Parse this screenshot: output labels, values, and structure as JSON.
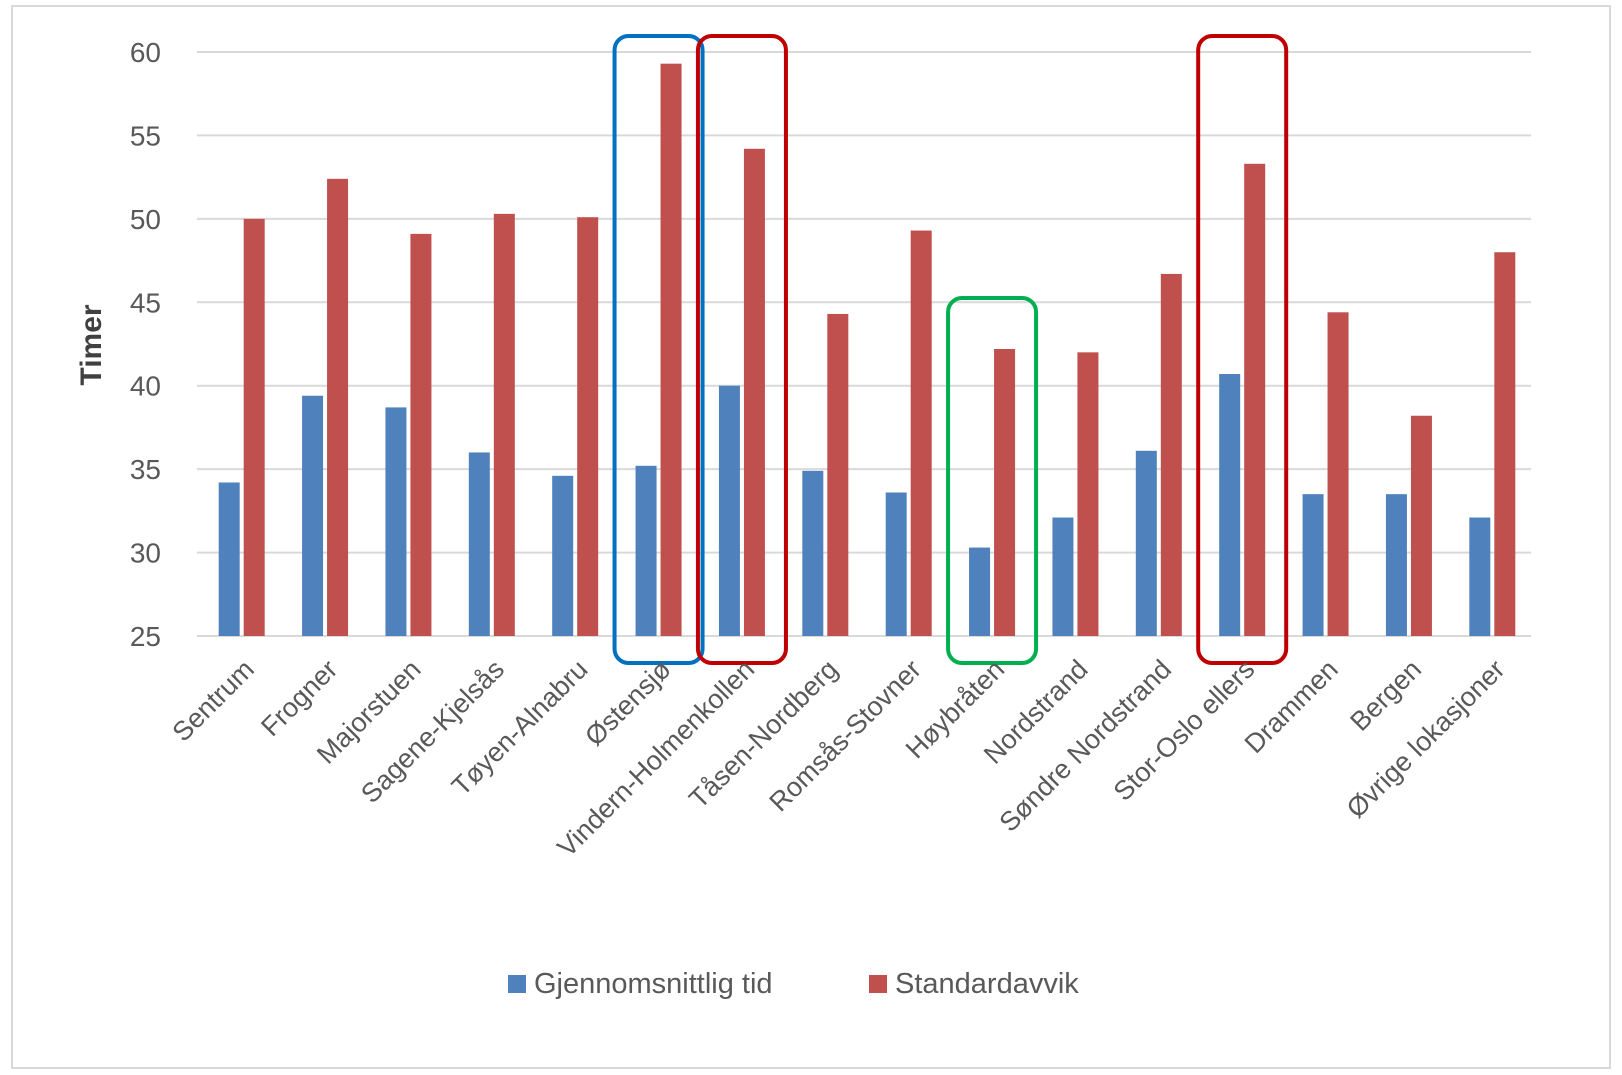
{
  "chart_data": {
    "type": "bar",
    "title": "",
    "xlabel": "",
    "ylabel": "Timer",
    "ylim": [
      25,
      60
    ],
    "yticks": [
      25,
      30,
      35,
      40,
      45,
      50,
      55,
      60
    ],
    "grid": true,
    "legend_position": "bottom",
    "categories": [
      "Sentrum",
      "Frogner",
      "Majorstuen",
      "Sagene-Kjelsås",
      "Tøyen-Alnabru",
      "Østensjø",
      "Vindern-Holmenkollen",
      "Tåsen-Nordberg",
      "Romsås-Stovner",
      "Høybråten",
      "Nordstrand",
      "Søndre Nordstrand",
      "Stor-Oslo ellers",
      "Drammen",
      "Bergen",
      "Øvrige lokasjoner"
    ],
    "series": [
      {
        "name": "Gjennomsnittlig tid",
        "color": "#4f81bd",
        "values": [
          34.2,
          39.4,
          38.7,
          36.0,
          34.6,
          35.2,
          40.0,
          34.9,
          33.6,
          30.3,
          32.1,
          36.1,
          40.7,
          33.5,
          33.5,
          32.1
        ]
      },
      {
        "name": "Standardavvik",
        "color": "#c0504d",
        "values": [
          50.0,
          52.4,
          49.1,
          50.3,
          50.1,
          59.3,
          54.2,
          44.3,
          49.3,
          42.2,
          42.0,
          46.7,
          53.3,
          44.4,
          38.2,
          48.0
        ]
      }
    ],
    "highlights": [
      {
        "categories": [
          "Østensjø"
        ],
        "color": "#0070c0"
      },
      {
        "categories": [
          "Vindern-Holmenkollen"
        ],
        "color": "#c00000"
      },
      {
        "categories": [
          "Høybråten"
        ],
        "color": "#00b050"
      },
      {
        "categories": [
          "Stor-Oslo ellers"
        ],
        "color": "#c00000"
      }
    ]
  }
}
